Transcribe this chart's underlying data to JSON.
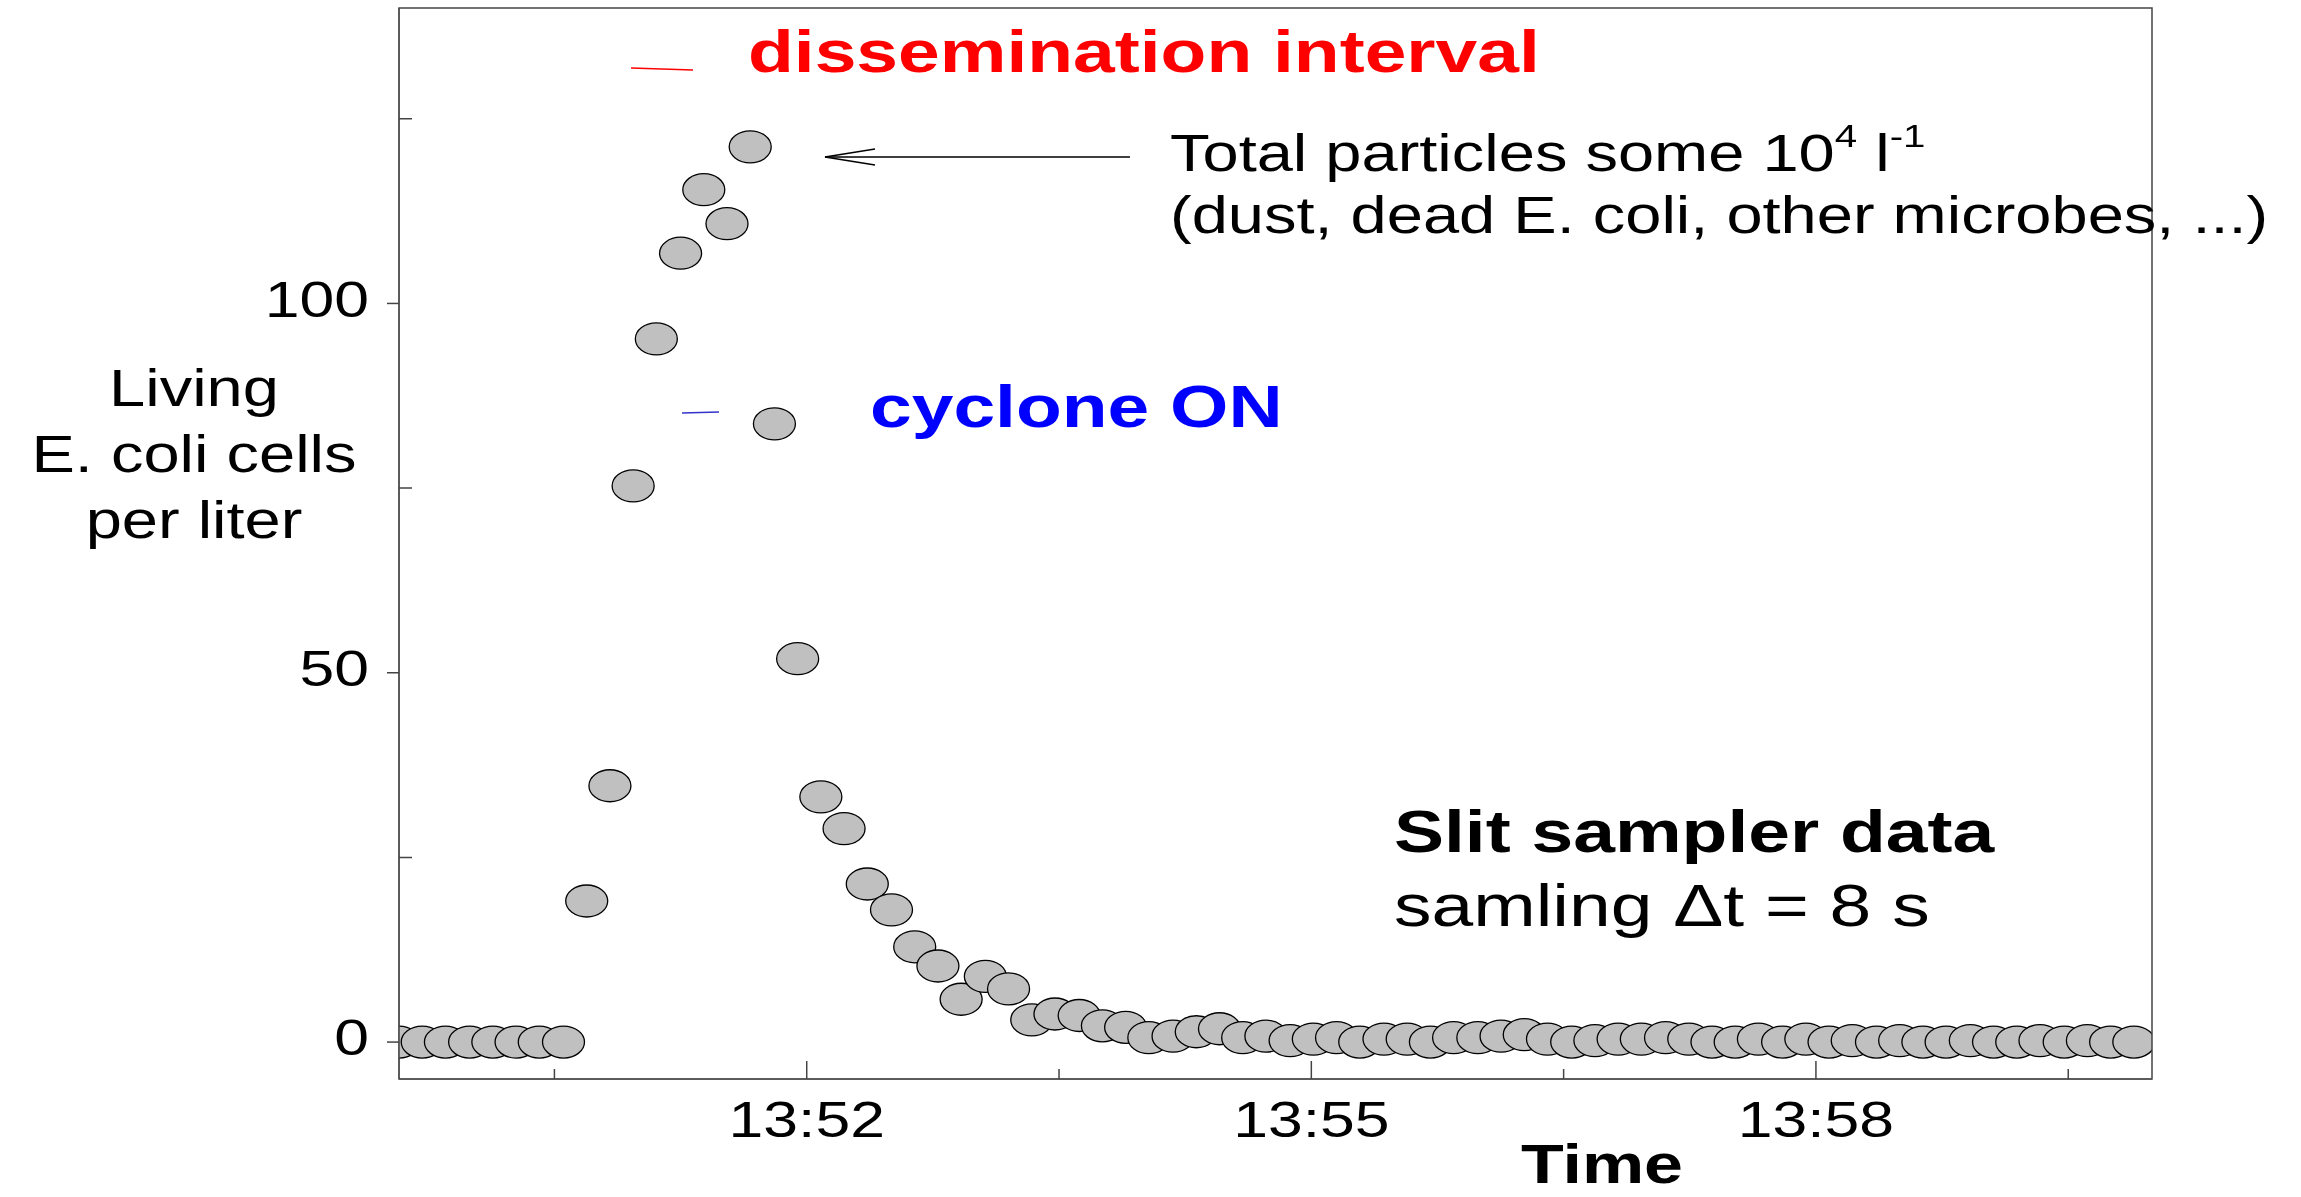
{
  "chart_data": {
    "type": "scatter",
    "xlabel": "Time",
    "ylabel": "Living\nE. coli cells\nper liter",
    "x": [
      13.8263,
      13.8286,
      13.8309,
      13.8333,
      13.8356,
      13.8379,
      13.8402,
      13.8426,
      13.8449,
      13.8472,
      13.8495,
      13.8518,
      13.8542,
      13.8565,
      13.8588,
      13.8611,
      13.8635,
      13.8658,
      13.8681,
      13.8704,
      13.8727,
      13.8751,
      13.8774,
      13.8797,
      13.882,
      13.8844,
      13.8867,
      13.889,
      13.8913,
      13.8937,
      13.896,
      13.8983,
      13.9006,
      13.903,
      13.9053,
      13.9076,
      13.9099,
      13.9122,
      13.9146,
      13.9169,
      13.9192,
      13.9215,
      13.9239,
      13.9262,
      13.9285,
      13.9308,
      13.9332,
      13.9355,
      13.9378,
      13.9401,
      13.9425,
      13.9448,
      13.9471,
      13.9494,
      13.9518,
      13.9541,
      13.9564,
      13.9587,
      13.961,
      13.9634,
      13.9657,
      13.968,
      13.9703,
      13.9727,
      13.975,
      13.9773,
      13.9796,
      13.982,
      13.9843,
      13.9866,
      13.9889,
      13.9913,
      13.9936,
      13.9959,
      13.9982
    ],
    "values": [
      0,
      0,
      0,
      0,
      0,
      0,
      0,
      0,
      19.1,
      34.7,
      75.3,
      95.2,
      106.8,
      115.4,
      110.8,
      121.2,
      83.7,
      51.9,
      33.2,
      28.9,
      21.4,
      17.9,
      12.9,
      10.3,
      5.8,
      8.9,
      7.2,
      3.0,
      3.8,
      3.6,
      2.2,
      2.0,
      0.6,
      0.8,
      1.4,
      1.8,
      0.6,
      0.8,
      0.2,
      0.4,
      0.6,
      0,
      0.4,
      0.4,
      0,
      0.6,
      0.6,
      0.8,
      1.0,
      0.4,
      0,
      0.2,
      0.4,
      0.4,
      0.6,
      0.4,
      0,
      0,
      0.4,
      0,
      0.4,
      0,
      0.2,
      0,
      0.2,
      0,
      0,
      0.2,
      0,
      0,
      0.2,
      0,
      0.2,
      0,
      0
    ],
    "color": "#c0c0c0",
    "marker": "circle",
    "xlim": [
      13.8263,
      14.0
    ],
    "xticks": [
      {
        "value": 13.8417,
        "label": null
      },
      {
        "value": 13.8667,
        "label": "13:52"
      },
      {
        "value": 13.8917,
        "label": null
      },
      {
        "value": 13.9167,
        "label": "13:55"
      },
      {
        "value": 13.9417,
        "label": null
      },
      {
        "value": 13.9667,
        "label": "13:58"
      },
      {
        "value": 13.9917,
        "label": null
      }
    ],
    "ylim": [
      -5,
      140
    ],
    "yticks": [
      0,
      {
        "value": 25,
        "label": null
      },
      50,
      {
        "value": 75,
        "label": null
      },
      100,
      {
        "value": 125,
        "label": null
      }
    ],
    "annotations": [
      "dissemination interval",
      "cyclone ON",
      "Total particles some 10$^{4}$ l$^{-1}$",
      "(dust, dead E. coli, other microbes, ...)",
      "Slit sampler data",
      "samling Δt = 8 s"
    ]
  }
}
